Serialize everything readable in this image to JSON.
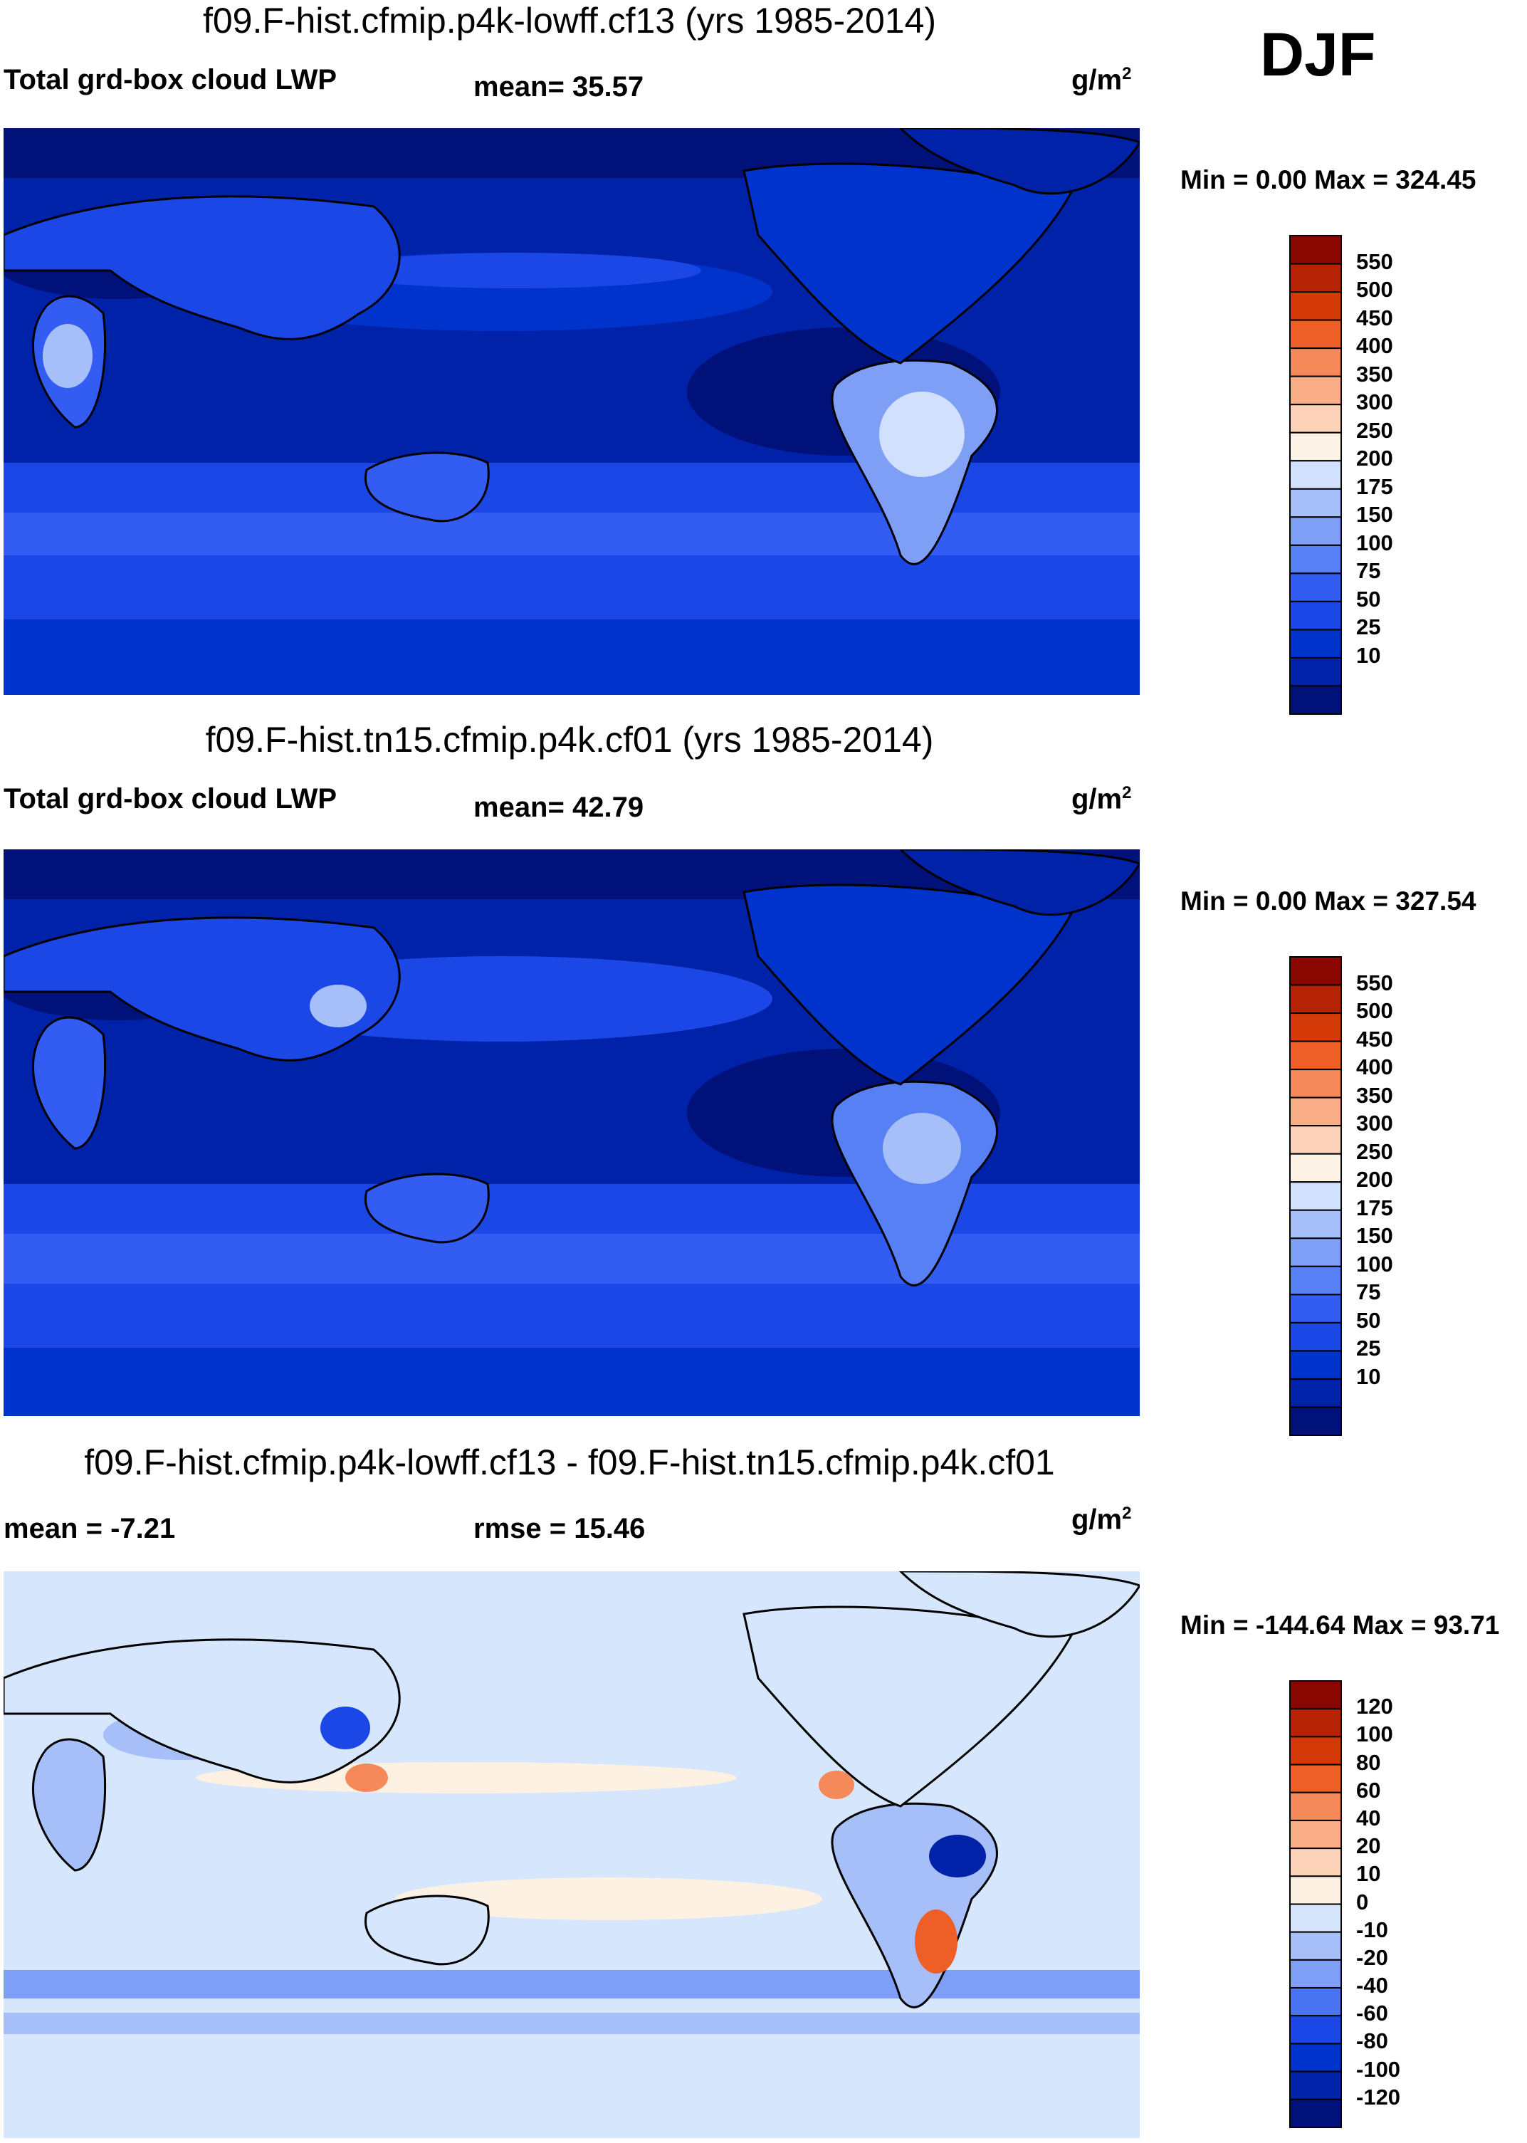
{
  "season": "DJF",
  "colors": {
    "lwp_scale": [
      "#00127a",
      "#0022a8",
      "#0033cc",
      "#1a47e6",
      "#335cf2",
      "#5780f5",
      "#7f9ff7",
      "#a6bff9",
      "#d1e0fc",
      "#fdf2e6",
      "#fcd2b8",
      "#faae88",
      "#f5895a",
      "#ee5f28",
      "#d43a08",
      "#b52204",
      "#8a0600"
    ],
    "diff_scale": [
      "#00127a",
      "#0022a8",
      "#0033cc",
      "#1a47e6",
      "#4a73f2",
      "#7f9ff7",
      "#a6bff9",
      "#d6e6fc",
      "#fdf1e4",
      "#fcd2b8",
      "#faae88",
      "#f5895a",
      "#ee5f28",
      "#d43a08",
      "#b52204",
      "#8a0600"
    ]
  },
  "panels": [
    {
      "title": "f09.F-hist.cfmip.p4k-lowff.cf13 (yrs 1985-2014)",
      "left_label": "Total grd-box cloud LWP",
      "stat_label": "mean=  35.57",
      "units": "g/m",
      "units_sup": "2",
      "minmax": "Min =   0.00 Max = 324.45",
      "kind": "lwp"
    },
    {
      "title": "f09.F-hist.tn15.cfmip.p4k.cf01 (yrs 1985-2014)",
      "left_label": "Total grd-box cloud LWP",
      "stat_label": "mean=  42.79",
      "units": "g/m",
      "units_sup": "2",
      "minmax": "Min =   0.00 Max = 327.54",
      "kind": "lwp"
    },
    {
      "title": "f09.F-hist.cfmip.p4k-lowff.cf13 - f09.F-hist.tn15.cfmip.p4k.cf01",
      "left_label": "mean =  -7.21",
      "stat_label": "rmse =  15.46",
      "units": "g/m",
      "units_sup": "2",
      "minmax": "Min = -144.64 Max =  93.71",
      "kind": "diff"
    }
  ],
  "chart_data": [
    {
      "type": "heatmap",
      "title": "f09.F-hist.cfmip.p4k-lowff.cf13 (yrs 1985-2014)",
      "variable": "Total grd-box cloud LWP",
      "units": "g/m2",
      "mean": 35.57,
      "min": 0.0,
      "max": 324.45,
      "colorbar_levels": [
        "550",
        "500",
        "450",
        "400",
        "350",
        "300",
        "250",
        "200",
        "175",
        "150",
        "100",
        "75",
        "50",
        "25",
        "10"
      ]
    },
    {
      "type": "heatmap",
      "title": "f09.F-hist.tn15.cfmip.p4k.cf01 (yrs 1985-2014)",
      "variable": "Total grd-box cloud LWP",
      "units": "g/m2",
      "mean": 42.79,
      "min": 0.0,
      "max": 327.54,
      "colorbar_levels": [
        "550",
        "500",
        "450",
        "400",
        "350",
        "300",
        "250",
        "200",
        "175",
        "150",
        "100",
        "75",
        "50",
        "25",
        "10"
      ]
    },
    {
      "type": "heatmap",
      "title": "f09.F-hist.cfmip.p4k-lowff.cf13 - f09.F-hist.tn15.cfmip.p4k.cf01",
      "units": "g/m2",
      "mean": -7.21,
      "rmse": 15.46,
      "min": -144.64,
      "max": 93.71,
      "colorbar_levels": [
        "120",
        "100",
        "80",
        "60",
        "40",
        "20",
        "10",
        "0",
        "-10",
        "-20",
        "-40",
        "-60",
        "-80",
        "-100",
        "-120"
      ]
    }
  ]
}
